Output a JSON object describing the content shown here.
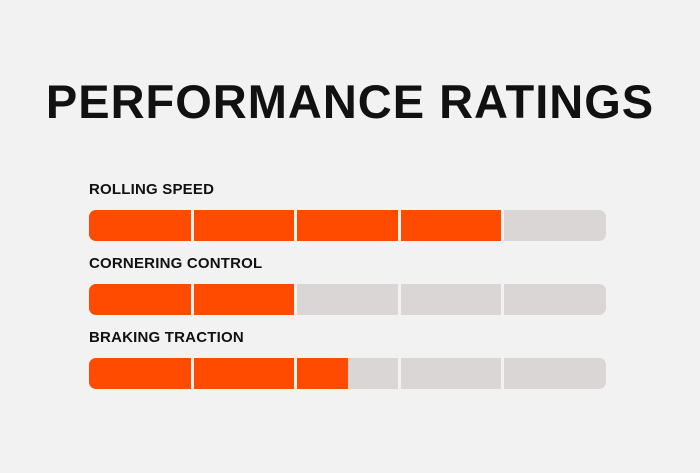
{
  "header": {
    "title": "PERFORMANCE RATINGS"
  },
  "colors": {
    "fill": "#ff4b00",
    "track": "#d9d6d5",
    "background": "#f2f2f2",
    "text": "#111111"
  },
  "segments_total": 5,
  "ratings": [
    {
      "label": "ROLLING SPEED",
      "value": 4,
      "max": 5
    },
    {
      "label": "CORNERING CONTROL",
      "value": 2,
      "max": 5
    },
    {
      "label": "BRAKING TRACTION",
      "value": 2.5,
      "max": 5
    }
  ]
}
